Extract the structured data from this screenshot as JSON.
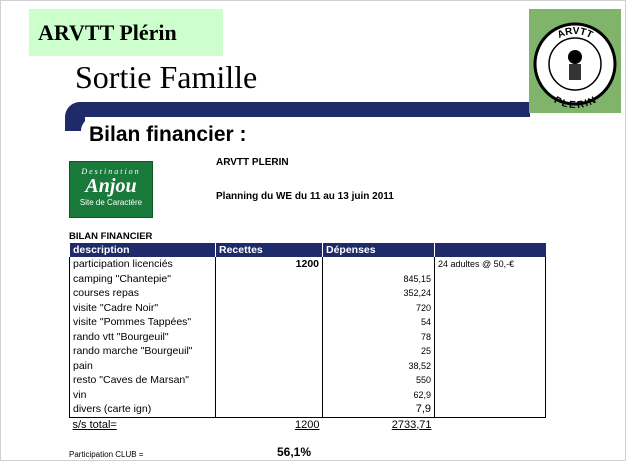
{
  "brand": "ARVTT Plérin",
  "title": "Sortie Famille",
  "section_title": "Bilan financier :",
  "anjou_logo": {
    "top": "Destination",
    "name": "Anjou",
    "bottom": "Site de Caractère"
  },
  "round_logo": {
    "top": "ARVTT",
    "bottom": "PLERIN"
  },
  "org": "ARVTT PLERIN",
  "planning": "Planning du WE du 11 au 13 juin 2011",
  "table": {
    "caption": "BILAN FINANCIER",
    "headers": [
      "description",
      "Recettes",
      "Dépenses",
      ""
    ],
    "rows": [
      [
        "participation licenciés",
        "1200",
        "",
        "24 adultes @ 50,-€"
      ],
      [
        "camping \"Chantepie\"",
        "",
        "845,15",
        ""
      ],
      [
        "courses repas",
        "",
        "352,24",
        ""
      ],
      [
        "visite \"Cadre Noir\"",
        "",
        "720",
        ""
      ],
      [
        "visite \"Pommes Tappées\"",
        "",
        "54",
        ""
      ],
      [
        "rando vtt \"Bourgeuil\"",
        "",
        "78",
        ""
      ],
      [
        "rando marche \"Bourgeuil\"",
        "",
        "25",
        ""
      ],
      [
        "pain",
        "",
        "38,52",
        ""
      ],
      [
        "resto \"Caves de Marsan\"",
        "",
        "550",
        ""
      ],
      [
        "vin",
        "",
        "62,9",
        ""
      ],
      [
        "divers (carte ign)",
        "",
        "7,9",
        ""
      ]
    ],
    "total": [
      "s/s total=",
      "1200",
      "2733,71"
    ]
  },
  "participation": {
    "label": "Participation CLUB =",
    "value": "56,1%"
  }
}
